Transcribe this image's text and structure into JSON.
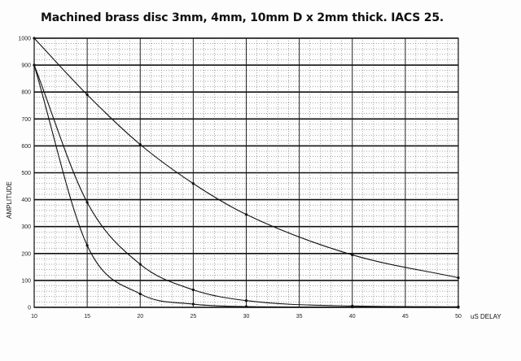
{
  "chart_data": {
    "type": "line",
    "title": "Machined brass disc 3mm, 4mm, 10mm D x 2mm thick. IACS 25.",
    "xlabel": "uS DELAY",
    "ylabel": "AMPLITUDE",
    "xlim": [
      10,
      50
    ],
    "ylim": [
      0,
      1000
    ],
    "x_ticks": [
      "10",
      "15",
      "20",
      "25",
      "30",
      "35",
      "40",
      "45",
      "50"
    ],
    "y_ticks": [
      "0",
      "100",
      "200",
      "300",
      "400",
      "500",
      "600",
      "700",
      "800",
      "900",
      "1000"
    ],
    "grid": true,
    "series": [
      {
        "x": [
          10,
          15,
          20,
          25,
          30,
          40,
          50
        ],
        "y": [
          1000,
          790,
          605,
          460,
          345,
          195,
          110
        ]
      },
      {
        "x": [
          10,
          15,
          20,
          25,
          30,
          40,
          50
        ],
        "y": [
          900,
          390,
          160,
          65,
          25,
          5,
          2
        ]
      },
      {
        "x": [
          10,
          15,
          20,
          25,
          30,
          40,
          50
        ],
        "y": [
          900,
          230,
          50,
          12,
          3,
          1,
          0
        ]
      }
    ]
  }
}
